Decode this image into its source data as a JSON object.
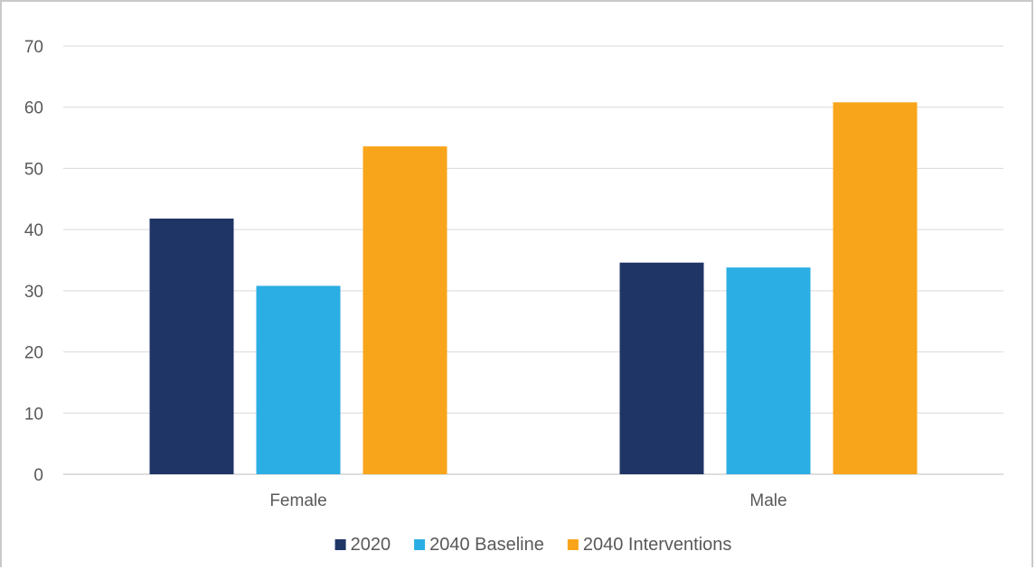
{
  "chart_data": {
    "type": "bar",
    "title": "",
    "xlabel": "",
    "ylabel": "",
    "categories": [
      "Female",
      "Male"
    ],
    "series": [
      {
        "name": "2020",
        "color": "#1f3566",
        "values": [
          41.8,
          34.6
        ]
      },
      {
        "name": "2040 Baseline",
        "color": "#2baee3",
        "values": [
          30.8,
          33.8
        ]
      },
      {
        "name": "2040 Interventions",
        "color": "#f8a51b",
        "values": [
          53.6,
          60.8
        ]
      }
    ],
    "ylim": [
      0,
      70
    ],
    "yticks": [
      0,
      10,
      20,
      30,
      40,
      50,
      60,
      70
    ],
    "grid": true,
    "legend_position": "bottom"
  }
}
